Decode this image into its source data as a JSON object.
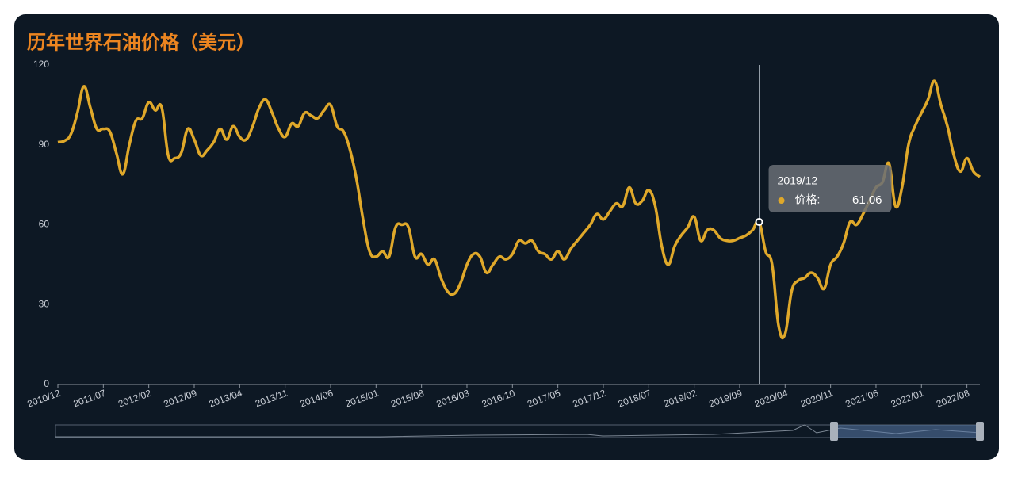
{
  "chart_data": {
    "type": "line",
    "title": "历年世界石油价格（美元）",
    "categories": [
      "2010/12",
      null,
      null,
      null,
      null,
      null,
      null,
      "2011/07",
      null,
      null,
      null,
      null,
      null,
      null,
      "2012/02",
      null,
      null,
      null,
      null,
      null,
      null,
      "2012/09",
      null,
      null,
      null,
      null,
      null,
      null,
      "2013/04",
      null,
      null,
      null,
      null,
      null,
      null,
      "2013/11",
      null,
      null,
      null,
      null,
      null,
      null,
      "2014/06",
      null,
      null,
      null,
      null,
      null,
      null,
      "2015/01",
      null,
      null,
      null,
      null,
      null,
      null,
      "2015/08",
      null,
      null,
      null,
      null,
      null,
      null,
      "2016/03",
      null,
      null,
      null,
      null,
      null,
      null,
      "2016/10",
      null,
      null,
      null,
      null,
      null,
      null,
      "2017/05",
      null,
      null,
      null,
      null,
      null,
      null,
      "2017/12",
      null,
      null,
      null,
      null,
      null,
      null,
      "2018/07",
      null,
      null,
      null,
      null,
      null,
      null,
      "2019/02",
      null,
      null,
      null,
      null,
      null,
      null,
      "2019/09",
      null,
      null,
      null,
      null,
      null,
      null,
      "2020/04",
      null,
      null,
      null,
      null,
      null,
      null,
      "2020/11",
      null,
      null,
      null,
      null,
      null,
      null,
      "2021/06",
      null,
      null,
      null,
      null,
      null,
      null,
      "2022/01",
      null,
      null,
      null,
      null,
      null,
      null,
      "2022/08",
      null,
      null
    ],
    "series": [
      {
        "color": "#dfa82a",
        "values": [
          91,
          91.5,
          94,
          102,
          112,
          104,
          96,
          96,
          95,
          87,
          79,
          90,
          99,
          100,
          106,
          103,
          104,
          86,
          85,
          87,
          96,
          92,
          86,
          88,
          91,
          96,
          92,
          97,
          93,
          92,
          97,
          104,
          107,
          102,
          96,
          93,
          98,
          97,
          102,
          101,
          100,
          103,
          105,
          97,
          95,
          88,
          77,
          62,
          50,
          48,
          50,
          48,
          59,
          60,
          59,
          48,
          49,
          45,
          47,
          40,
          35,
          34,
          38,
          45,
          49,
          48,
          42,
          45,
          48,
          47,
          49,
          54,
          53,
          54,
          50,
          49,
          47,
          50,
          47,
          51,
          54,
          57,
          60,
          64,
          62,
          65,
          68,
          67,
          74,
          68,
          69,
          73,
          67,
          52,
          45,
          52,
          56,
          59,
          63,
          54,
          58,
          58,
          55,
          54,
          54,
          55,
          56,
          58,
          61.06,
          50,
          45,
          22,
          19,
          35,
          39,
          40,
          42,
          40,
          36,
          45,
          48,
          53,
          61,
          60,
          64,
          69,
          74,
          76,
          83,
          67,
          74,
          90,
          97,
          102,
          107,
          114,
          105,
          97,
          86,
          80,
          85,
          80,
          78
        ]
      }
    ],
    "ylim": [
      0,
      120
    ],
    "yticks": [
      0,
      30,
      60,
      90,
      120
    ],
    "tooltip": {
      "x": "2019/12",
      "label": "价格:",
      "value": 61.06
    }
  }
}
